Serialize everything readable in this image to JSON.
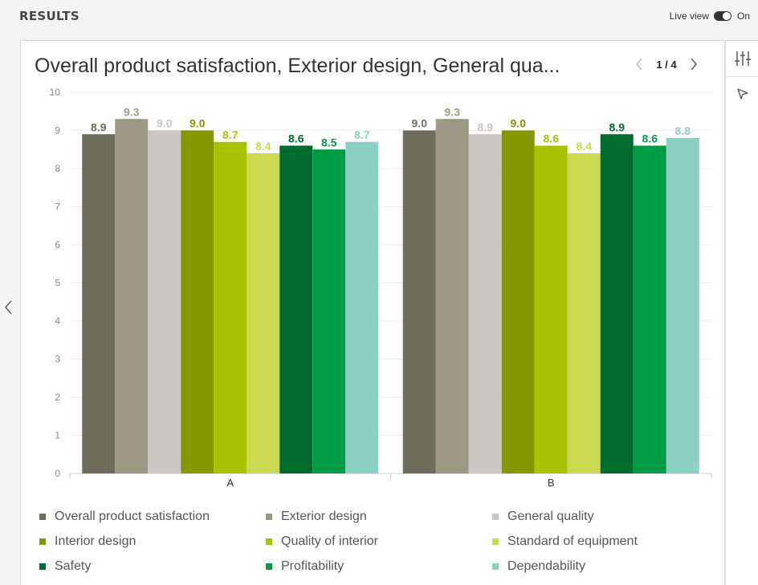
{
  "header": {
    "title": "RESULTS",
    "live_view_label": "Live view",
    "live_view_state": "On"
  },
  "chart_title": "Overall product satisfaction, Exterior design, General qua...",
  "pager": {
    "text": "1 / 4",
    "current": 1,
    "total": 4
  },
  "chart_data": {
    "type": "bar",
    "categories": [
      "A",
      "B"
    ],
    "ylim": [
      0,
      10
    ],
    "yticks": [
      0,
      1,
      2,
      3,
      4,
      5,
      6,
      7,
      8,
      9,
      10
    ],
    "grid": true,
    "legend_position": "bottom",
    "series": [
      {
        "name": "Overall product satisfaction",
        "color": "#6e6c5a",
        "values": [
          8.9,
          9.0
        ]
      },
      {
        "name": "Exterior design",
        "color": "#9c9883",
        "values": [
          9.3,
          9.3
        ]
      },
      {
        "name": "General quality",
        "color": "#cbc6c2",
        "values": [
          9.0,
          8.9
        ]
      },
      {
        "name": "Interior design",
        "color": "#859800",
        "values": [
          9.0,
          9.0
        ]
      },
      {
        "name": "Quality of interior",
        "color": "#a9c200",
        "values": [
          8.7,
          8.6
        ]
      },
      {
        "name": "Standard of equipment",
        "color": "#cad84f",
        "values": [
          8.4,
          8.4
        ]
      },
      {
        "name": "Safety",
        "color": "#006b2c",
        "values": [
          8.6,
          8.9
        ]
      },
      {
        "name": "Profitability",
        "color": "#009c44",
        "values": [
          8.5,
          8.6
        ]
      },
      {
        "name": "Dependability",
        "color": "#8cd0c3",
        "values": [
          8.7,
          8.8
        ]
      }
    ]
  }
}
